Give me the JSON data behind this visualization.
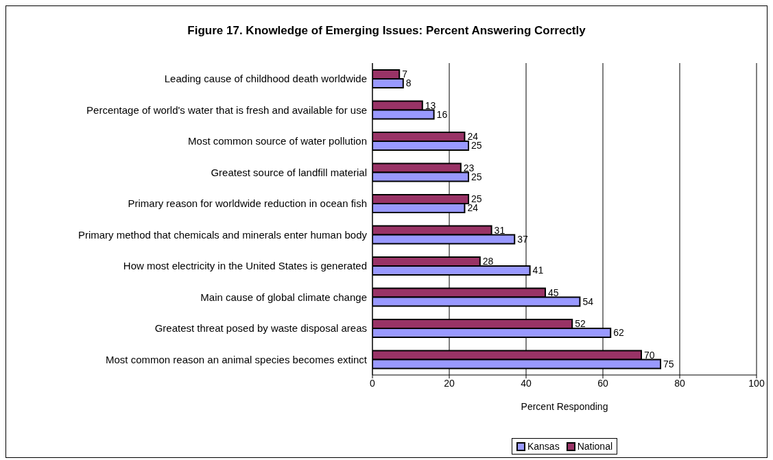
{
  "chart_data": {
    "type": "bar",
    "orientation": "horizontal",
    "title": "Figure 17. Knowledge of Emerging Issues: Percent Answering Correctly",
    "xlabel": "Percent Responding",
    "categories": [
      "Leading cause of childhood death worldwide",
      "Percentage of world's water that is fresh and available for use",
      "Most common source of water pollution",
      "Greatest source of landfill material",
      "Primary reason for worldwide reduction in ocean fish",
      "Primary method that chemicals and minerals enter human body",
      "How most electricity in the United States is generated",
      "Main cause of global climate change",
      "Greatest threat posed by waste disposal areas",
      "Most common reason an animal species becomes extinct"
    ],
    "series": [
      {
        "name": "Kansas",
        "color": "#9999ff",
        "values": [
          8,
          16,
          25,
          25,
          24,
          37,
          41,
          54,
          62,
          75
        ]
      },
      {
        "name": "National",
        "color": "#993366",
        "values": [
          7,
          13,
          24,
          23,
          25,
          31,
          28,
          45,
          52,
          70
        ]
      }
    ],
    "xlim": [
      0,
      100
    ],
    "xticks": [
      0,
      20,
      40,
      60,
      80,
      100
    ],
    "grid": "x",
    "legend": "bottom",
    "data_labels": true
  }
}
